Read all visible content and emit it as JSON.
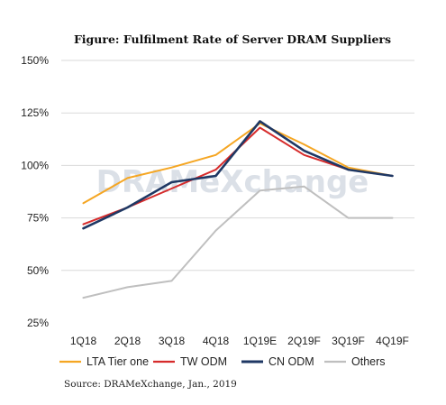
{
  "chart_data": {
    "type": "line",
    "title": "Figure: Fulfilment Rate of Server DRAM Suppliers",
    "xlabel": "",
    "ylabel": "",
    "categories": [
      "1Q18",
      "2Q18",
      "3Q18",
      "4Q18",
      "1Q19E",
      "2Q19F",
      "3Q19F",
      "4Q19F"
    ],
    "ylim": [
      25,
      150
    ],
    "yticks": [
      25,
      50,
      75,
      100,
      125,
      150
    ],
    "ytick_labels": [
      "25%",
      "50%",
      "75%",
      "100%",
      "125%",
      "150%"
    ],
    "grid": "horizontal",
    "legend_position": "bottom",
    "series": [
      {
        "name": "LTA Tier one",
        "color": "#f5a623",
        "values": [
          82,
          94,
          99,
          105,
          120,
          110,
          99,
          95
        ]
      },
      {
        "name": "TW ODM",
        "color": "#d62b2b",
        "values": [
          72,
          80,
          89,
          98,
          118,
          105,
          98,
          95
        ]
      },
      {
        "name": "CN ODM",
        "color": "#1f3864",
        "values": [
          70,
          80,
          92,
          95,
          121,
          107,
          98,
          95
        ]
      },
      {
        "name": "Others",
        "color": "#bfbfbf",
        "values": [
          37,
          42,
          45,
          69,
          88,
          90,
          75,
          75
        ]
      }
    ],
    "source": "Source: DRAMeXchange, Jan., 2019",
    "watermark": "DRAMeXchange"
  }
}
